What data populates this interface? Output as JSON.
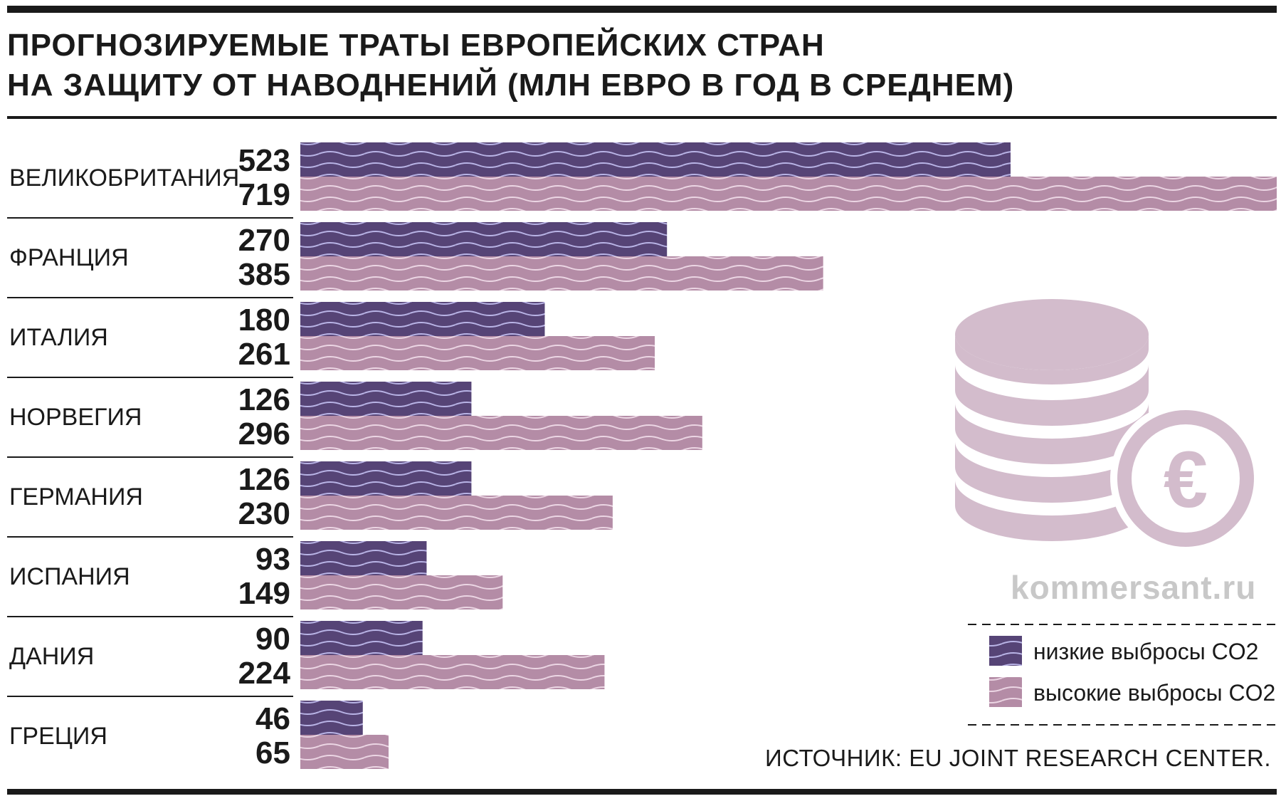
{
  "title_lines": [
    "ПРОГНОЗИРУЕМЫЕ ТРАТЫ ЕВРОПЕЙСКИХ СТРАН",
    "НА ЗАЩИТУ ОТ НАВОДНЕНИЙ (МЛН ЕВРО В ГОД В СРЕДНЕМ)"
  ],
  "source": "ИСТОЧНИК: EU JOINT RESEARCH CENTER.",
  "watermark": "kommersant.ru",
  "icon": "coins-euro-icon",
  "colors": {
    "low": "#564476",
    "high": "#b48ca6",
    "wave_low": "#b9b4e6",
    "wave_high": "#ecd6e4",
    "icon": "#d3bccc",
    "text": "#1a1a1a"
  },
  "chart_data": {
    "type": "bar",
    "orientation": "horizontal",
    "categories": [
      "ВЕЛИКОБРИТАНИЯ",
      "ФРАНЦИЯ",
      "ИТАЛИЯ",
      "НОРВЕГИЯ",
      "ГЕРМАНИЯ",
      "ИСПАНИЯ",
      "ДАНИЯ",
      "ГРЕЦИЯ"
    ],
    "series": [
      {
        "name": "низкие выбросы CO2",
        "values": [
          523,
          270,
          180,
          126,
          126,
          93,
          90,
          46
        ]
      },
      {
        "name": "высокие выбросы CO2",
        "values": [
          719,
          385,
          261,
          296,
          230,
          149,
          224,
          65
        ]
      }
    ],
    "xlim": [
      0,
      719
    ],
    "legend_position": "bottom-right",
    "grid": false
  }
}
